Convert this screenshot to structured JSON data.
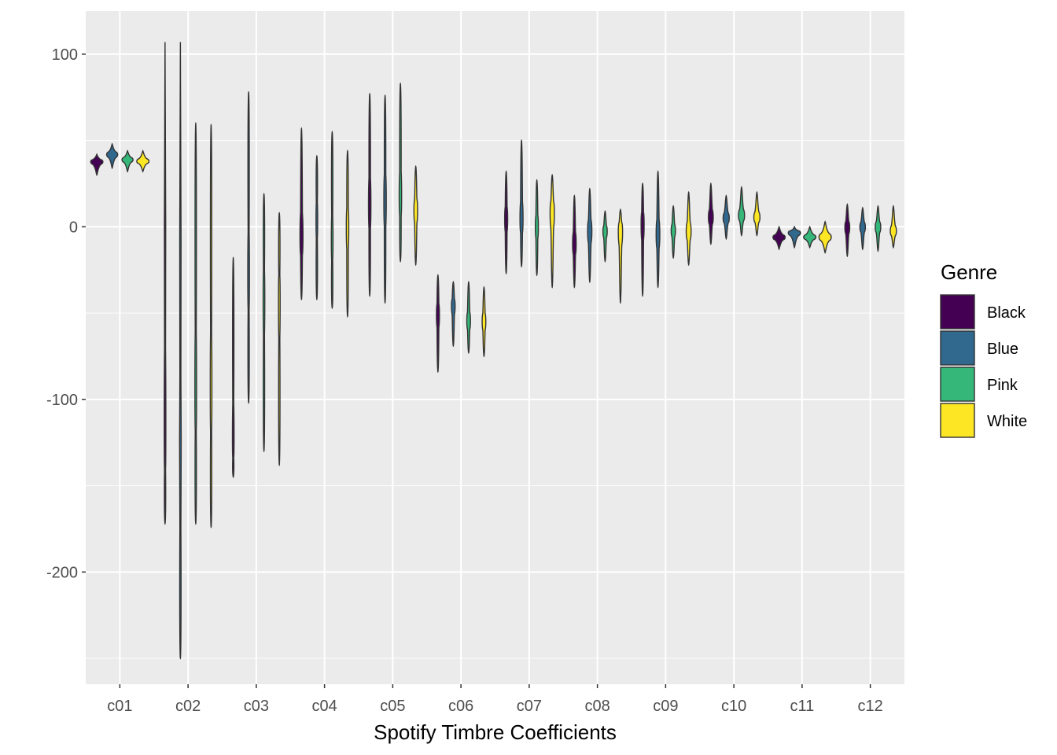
{
  "chart_data": {
    "type": "violin",
    "xlabel": "Spotify Timbre Coefficients",
    "ylabel": "",
    "ylim": [
      -265,
      125
    ],
    "y_ticks": [
      100,
      0,
      -100,
      -200
    ],
    "y_tick_labels": [
      "100",
      "0",
      "-100",
      "-200"
    ],
    "categories": [
      "c01",
      "c02",
      "c03",
      "c04",
      "c05",
      "c06",
      "c07",
      "c08",
      "c09",
      "c10",
      "c11",
      "c12"
    ],
    "grid": true,
    "legend": {
      "title": "Genre",
      "position": "right"
    },
    "series": [
      {
        "name": "Black",
        "color": "#440154",
        "ranges": [
          [
            30,
            42
          ],
          [
            -172,
            107
          ],
          [
            -145,
            -18
          ],
          [
            -42,
            57
          ],
          [
            -40,
            77
          ],
          [
            -84,
            -28
          ],
          [
            -27,
            32
          ],
          [
            -35,
            18
          ],
          [
            -40,
            25
          ],
          [
            -10,
            25
          ],
          [
            -13,
            0
          ],
          [
            -17,
            13
          ]
        ],
        "peaks": [
          38,
          -130,
          -130,
          -8,
          12,
          -50,
          5,
          -10,
          3,
          5,
          -6,
          0
        ],
        "widths": [
          1.0,
          0.05,
          0.05,
          0.25,
          0.2,
          0.25,
          0.25,
          0.3,
          0.25,
          0.4,
          1.0,
          0.4
        ]
      },
      {
        "name": "Blue",
        "color": "#31688e",
        "ranges": [
          [
            34,
            48
          ],
          [
            -250,
            107
          ],
          [
            -102,
            78
          ],
          [
            -42,
            41
          ],
          [
            -44,
            76
          ],
          [
            -69,
            -32
          ],
          [
            -23,
            50
          ],
          [
            -32,
            22
          ],
          [
            -35,
            32
          ],
          [
            -7,
            18
          ],
          [
            -12,
            0
          ],
          [
            -13,
            11
          ]
        ],
        "peaks": [
          42,
          -150,
          -30,
          5,
          15,
          -45,
          3,
          -2,
          -5,
          5,
          -3,
          0
        ],
        "widths": [
          0.9,
          0.05,
          0.05,
          0.1,
          0.2,
          0.3,
          0.25,
          0.35,
          0.3,
          0.5,
          1.0,
          0.45
        ]
      },
      {
        "name": "Pink",
        "color": "#35b779",
        "ranges": [
          [
            32,
            44
          ],
          [
            -172,
            60
          ],
          [
            -130,
            19
          ],
          [
            -47,
            55
          ],
          [
            -20,
            83
          ],
          [
            -73,
            -32
          ],
          [
            -28,
            27
          ],
          [
            -20,
            9
          ],
          [
            -18,
            12
          ],
          [
            -5,
            23
          ],
          [
            -12,
            0
          ],
          [
            -14,
            12
          ]
        ],
        "peaks": [
          39,
          -100,
          -40,
          -10,
          15,
          -55,
          0,
          -2,
          -2,
          6,
          -6,
          0
        ],
        "widths": [
          0.9,
          0.05,
          0.05,
          0.1,
          0.2,
          0.3,
          0.25,
          0.35,
          0.35,
          0.5,
          1.0,
          0.45
        ]
      },
      {
        "name": "White",
        "color": "#fde725",
        "ranges": [
          [
            32,
            44
          ],
          [
            -174,
            59
          ],
          [
            -138,
            8
          ],
          [
            -52,
            44
          ],
          [
            -22,
            35
          ],
          [
            -75,
            -35
          ],
          [
            -35,
            30
          ],
          [
            -44,
            10
          ],
          [
            -22,
            20
          ],
          [
            -5,
            20
          ],
          [
            -15,
            3
          ],
          [
            -12,
            12
          ]
        ],
        "peaks": [
          38,
          -100,
          -40,
          0,
          10,
          -55,
          10,
          0,
          -3,
          5,
          -6,
          -3
        ],
        "widths": [
          1.0,
          0.05,
          0.05,
          0.2,
          0.3,
          0.3,
          0.35,
          0.35,
          0.4,
          0.5,
          1.0,
          0.5
        ]
      }
    ]
  }
}
